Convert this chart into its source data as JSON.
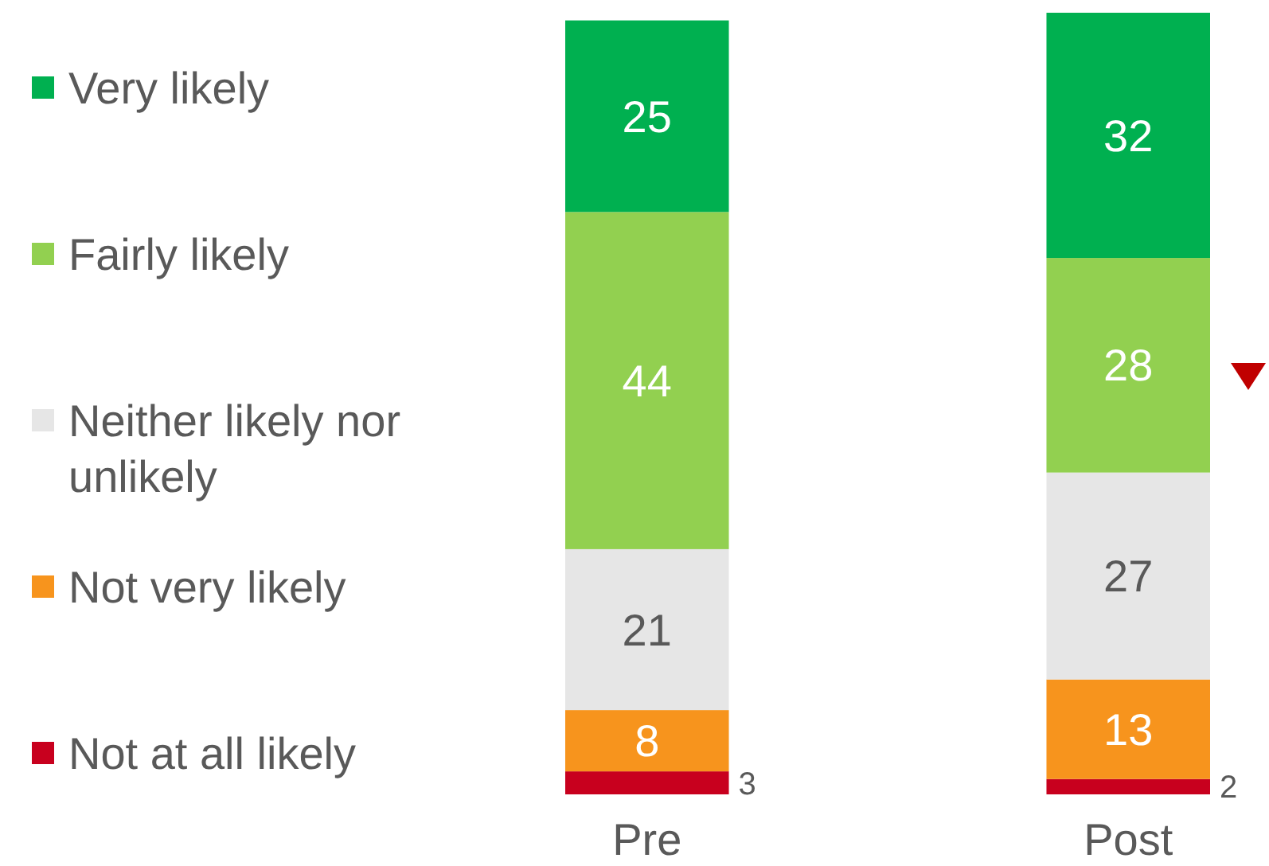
{
  "chart_data": {
    "type": "bar",
    "stacked": true,
    "data_labels": true,
    "legend": "left",
    "categories": [
      "Pre",
      "Post"
    ],
    "series": [
      {
        "name": "Not at all likely",
        "color": "#c8001e",
        "values": [
          3,
          2
        ]
      },
      {
        "name": "Not very likely",
        "color": "#f7941d",
        "values": [
          8,
          13
        ]
      },
      {
        "name": "Neither likely nor unlikely",
        "color": "#e6e6e6",
        "values": [
          21,
          27
        ]
      },
      {
        "name": "Fairly likely",
        "color": "#92d050",
        "values": [
          44,
          28
        ]
      },
      {
        "name": "Very likely",
        "color": "#00b050",
        "values": [
          25,
          32
        ]
      }
    ]
  }
}
